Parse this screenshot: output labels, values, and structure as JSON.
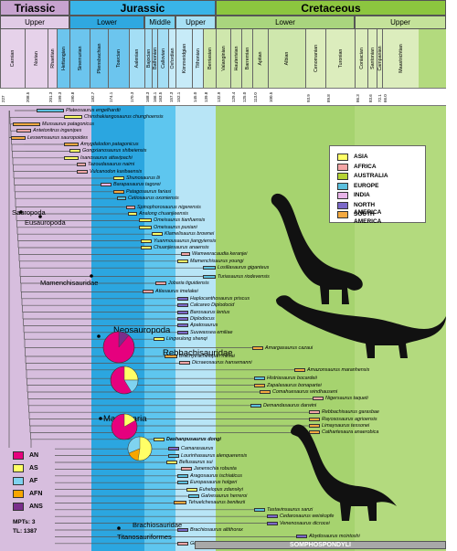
{
  "periods": [
    {
      "label": "Triassic",
      "color": "#c7a3cf"
    },
    {
      "label": "Jurassic",
      "color": "#39b4e8"
    },
    {
      "label": "Cretaceous",
      "color": "#8cc63f"
    }
  ],
  "epochs": [
    {
      "label": "Upper",
      "color": "#e1cbe6"
    },
    {
      "label": "Lower",
      "color": "#2fa8e0"
    },
    {
      "label": "Middle",
      "color": "#7dd3f0"
    },
    {
      "label": "Upper",
      "color": "#a8e0f4"
    },
    {
      "label": "Lower",
      "color": "#a9d57e"
    },
    {
      "label": "Upper",
      "color": "#c4e29a"
    }
  ],
  "stages": [
    "Carnian",
    "Norian",
    "Rhaetian",
    "Hettangian",
    "Sinemurian",
    "Pliensbachian",
    "Toarcian",
    "Aalenian",
    "Bajocian",
    "Bathonian",
    "Callovian",
    "Oxfordian",
    "Kimmeridgian",
    "Tithonian",
    "Berriasian",
    "Valanginian",
    "Hauterivian",
    "Barremian",
    "Aptian",
    "Albian",
    "Cenomanian",
    "Turonian",
    "Coniacian",
    "Santonian",
    "Campanian",
    "Maastrichtian"
  ],
  "ages": [
    "227",
    "208.5",
    "201.3",
    "199.3",
    "190.8",
    "182.7",
    "174.1",
    "170.3",
    "168.3",
    "166.1",
    "163.5",
    "157.3",
    "152.1",
    "145.0",
    "139.8",
    "132.9",
    "129.4",
    "125.0",
    "113.0",
    "100.5",
    "93.9",
    "89.8",
    "86.3",
    "83.6",
    "72.1",
    "66.0"
  ],
  "legend": {
    "title": "",
    "items": [
      {
        "label": "ASIA",
        "color": "#ffff66"
      },
      {
        "label": "AFRICA",
        "color": "#f4a6a6"
      },
      {
        "label": "AUSTRALIA",
        "color": "#b5d334"
      },
      {
        "label": "EUROPE",
        "color": "#5bc0de"
      },
      {
        "label": "INDIA",
        "color": "#e8b4e8"
      },
      {
        "label": "NORTH AMERICA",
        "color": "#7b68c8"
      },
      {
        "label": "SOUTH AMERICA",
        "color": "#f4a940"
      }
    ]
  },
  "pie_legend": {
    "items": [
      {
        "label": "AN",
        "color": "#e6007e"
      },
      {
        "label": "AS",
        "color": "#ffff66"
      },
      {
        "label": "AF",
        "color": "#7fd3f0"
      },
      {
        "label": "AFN",
        "color": "#f7a600"
      },
      {
        "label": "ANS",
        "color": "#7a2e8c"
      }
    ],
    "mpts": "MPTs: 3",
    "tl": "TL: 1387"
  },
  "clades": {
    "sauropoda": "Sauropoda",
    "eusauropoda": "Eusauropoda",
    "mamenchisauridae": "Mamenchisauridae",
    "neosauropoda": "Neosauropoda",
    "rebbachisauridae": "Rebbachisauridae",
    "macronaria": "Macronaria",
    "brachiosauridae": "Brachiosauridae",
    "titanosauriformes": "Titanosauriformes",
    "somphospondyli": "SOMPHOSPONDYLI"
  },
  "taxa": [
    "Plateosaurus engelhardti",
    "Chinshakiangosaurus chunghoensis",
    "Mussaurus patagonicus",
    "Antetonitrus ingenipes",
    "Lessemsaurus sauropoides",
    "Amygdalodon patagonicus",
    "Gongxianosaurus shibeiensis",
    "Isanosaurus attavipachi",
    "Tazoudasaurus naimi",
    "Vulcanodon karibaensis",
    "Shunosaurus lii",
    "Barapasaurus tagorei",
    "Patagosaurus fariasi",
    "Cetiosaurus oxoniensis",
    "Spinophorosaurus nigerensis",
    "Analong chuanjieensis",
    "Omeisaurus tianfuensis",
    "Omeisaurus puxiani",
    "Klamelisaurus brownei",
    "Yuanmousaurus jiangyiensis",
    "Chuanjiesaurus anaensis",
    "Wamweracaudia keranjei",
    "Mamenchisaurus youngi",
    "Losillasaurus giganteus",
    "Turiasaurus riodevensis",
    "Jobaria tiguidensis",
    "Atlasaurus imelakei",
    "Haplocanthosaurus priscus",
    "Calcareo Diplodocid",
    "Barosaurus lentus",
    "Diplodocus",
    "Apatosaurus",
    "Suuwassea emiliae",
    "Lingwulong shenqi",
    "Amargasaurus cazaui",
    "Brachytrachelopan mesai",
    "Dicraeosaurus hansemanni",
    "Amazonsaurus maranhensis",
    "Histriasaurus bocardeii",
    "Zapalasaurus bonapartei",
    "Comahuesaurus windhauseni",
    "Nigersaurus taqueti",
    "Demandasaurus darwini",
    "Rebbachisaurus garasbae",
    "Rayososaurus agrioensis",
    "Limaysaurus tessonei",
    "Cathartesaura anaerobica",
    "Dashanpusaurus dongi",
    "Camarasaurus",
    "Lourinhasaurus alenquerensis",
    "Bellusaurus sui",
    "Janenschia robusta",
    "Aragosaurus ischiaticus",
    "Europasaurus holgeri",
    "Euhelopus zdanskyi",
    "Galvesaurus herreroi",
    "Tehuelchesaurus benitezii",
    "Tastavinsaurus sanzi",
    "Cedarosaurus weiskopfe",
    "Venenosaurus dicrocei",
    "Brachiosaurus altithorax",
    "Abydosaurus mcintoshi",
    "Giraffatitan brancai"
  ]
}
